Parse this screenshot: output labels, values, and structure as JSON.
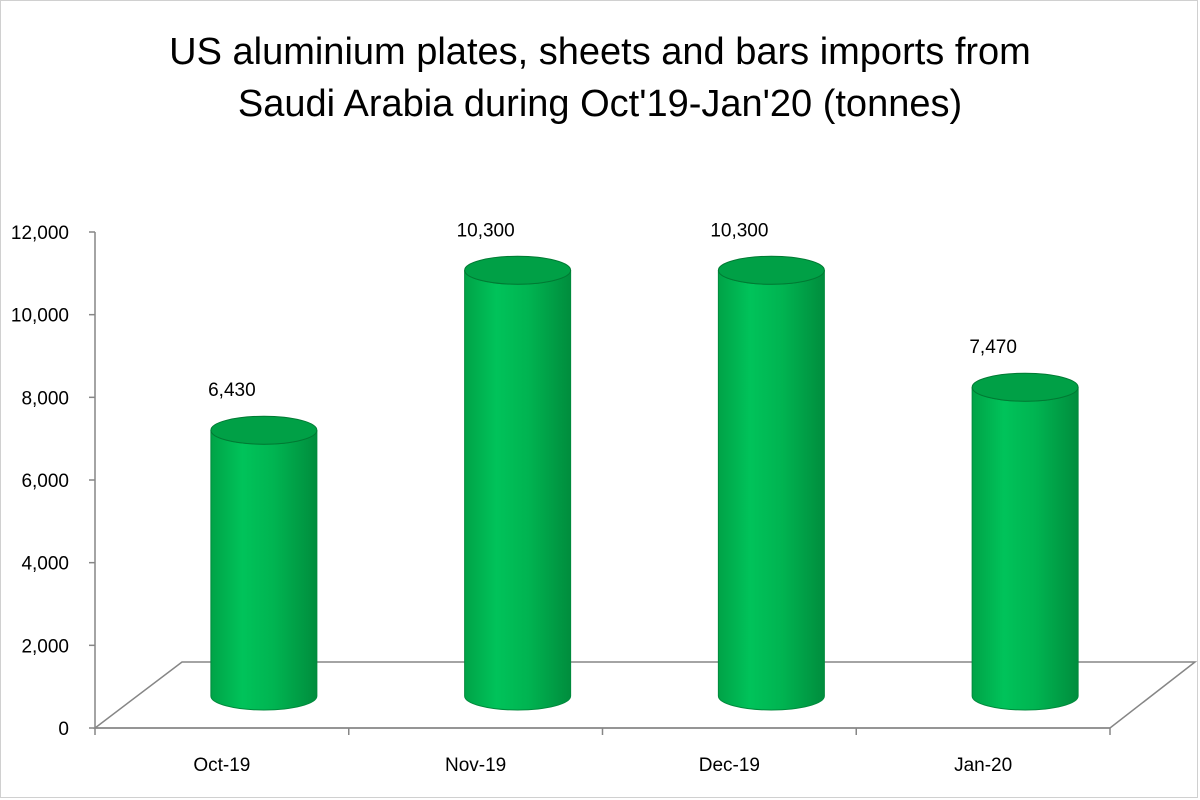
{
  "chart_data": {
    "type": "bar",
    "title_lines": [
      "US aluminium plates, sheets and bars imports from",
      "Saudi Arabia during Oct'19-Jan'20 (tonnes)"
    ],
    "categories": [
      "Oct-19",
      "Nov-19",
      "Dec-19",
      "Jan-20"
    ],
    "values": [
      6430,
      10300,
      10300,
      7470
    ],
    "value_labels": [
      "6,430",
      "10,300",
      "10,300",
      "7,470"
    ],
    "y_ticks": [
      "0",
      "2,000",
      "4,000",
      "6,000",
      "8,000",
      "10,000",
      "12,000"
    ],
    "ylim": [
      0,
      12000
    ],
    "xlabel": "",
    "ylabel": "",
    "legend": "none",
    "grid": false,
    "style": "3d-cylinder",
    "colors": {
      "bar_fill": "#00b050",
      "bar_edge": "#008a3c",
      "bar_top": "#00a046",
      "axis": "#868686"
    }
  }
}
